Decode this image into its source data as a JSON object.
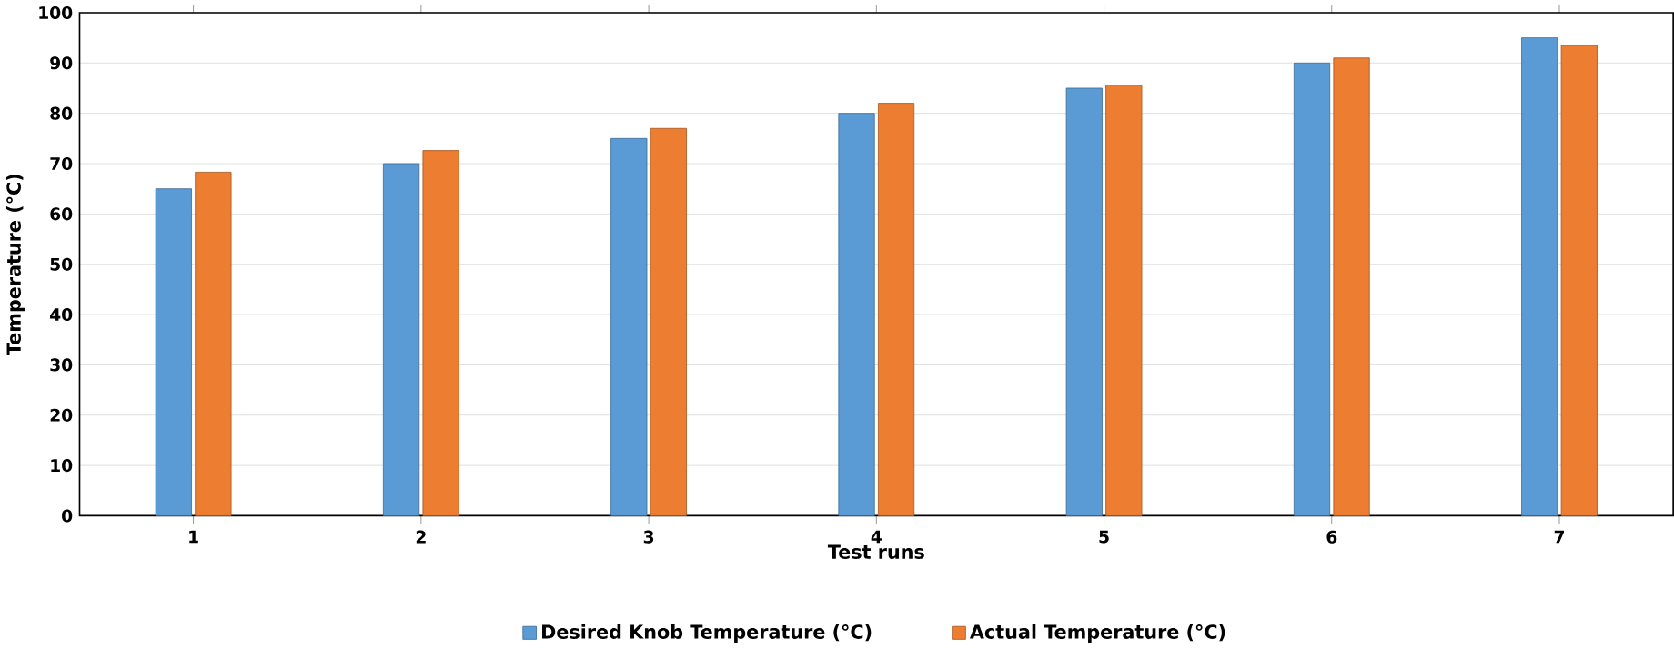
{
  "chart_data": {
    "type": "bar",
    "xlabel": "Test runs",
    "ylabel": "Temperature (°C)",
    "categories": [
      "1",
      "2",
      "3",
      "4",
      "5",
      "6",
      "7"
    ],
    "series": [
      {
        "name": "Desired Knob Temperature (°C)",
        "color": "#5b9bd5",
        "values": [
          65,
          70,
          75,
          80,
          85,
          90,
          95
        ]
      },
      {
        "name": "Actual Temperature (°C)",
        "color": "#ed7d31",
        "values": [
          68.3,
          72.6,
          77,
          82,
          85.6,
          91,
          93.5
        ]
      }
    ],
    "ylim": [
      0,
      100
    ],
    "yticks": [
      0,
      10,
      20,
      30,
      40,
      50,
      60,
      70,
      80,
      90,
      100
    ],
    "grid": "y",
    "legend": "bottom"
  }
}
